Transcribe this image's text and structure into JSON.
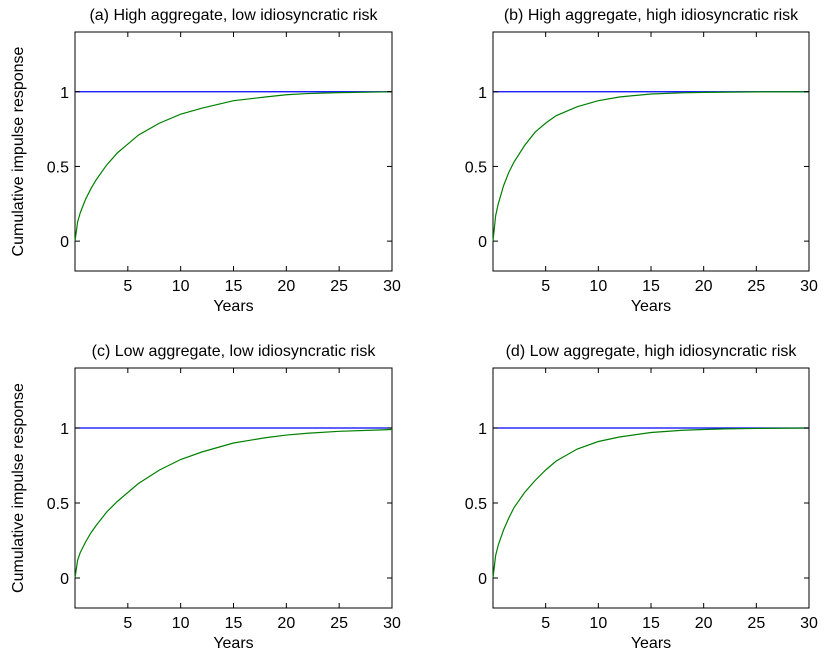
{
  "chart_data": [
    {
      "type": "line",
      "title": "(a) High aggregate, low idiosyncratic risk",
      "xlabel": "Years",
      "ylabel": "Cumulative impulse response",
      "xlim": [
        0,
        30
      ],
      "ylim": [
        -0.2,
        1.4
      ],
      "xticks": [
        5,
        10,
        15,
        20,
        25,
        30
      ],
      "yticks": [
        0,
        0.5,
        1
      ],
      "ytick_labels": [
        "0",
        "0.5",
        "1"
      ],
      "grid": false,
      "series": [
        {
          "color": "#0000ff",
          "x": [
            0,
            30
          ],
          "y": [
            1,
            1
          ]
        },
        {
          "color": "#008000",
          "x": [
            0,
            0.25,
            0.5,
            1,
            1.5,
            2,
            3,
            4,
            5,
            6,
            8,
            10,
            12,
            15,
            18,
            20,
            22,
            25,
            30
          ],
          "y": [
            0,
            0.13,
            0.19,
            0.28,
            0.35,
            0.41,
            0.51,
            0.59,
            0.65,
            0.71,
            0.79,
            0.85,
            0.89,
            0.94,
            0.965,
            0.98,
            0.988,
            0.994,
            1.0
          ]
        }
      ]
    },
    {
      "type": "line",
      "title": "(b) High aggregate, high idiosyncratic risk",
      "xlabel": "Years",
      "ylabel": "",
      "xlim": [
        0,
        30
      ],
      "ylim": [
        -0.2,
        1.4
      ],
      "xticks": [
        5,
        10,
        15,
        20,
        25,
        30
      ],
      "yticks": [
        0,
        0.5,
        1
      ],
      "ytick_labels": [
        "0",
        "0.5",
        "1"
      ],
      "grid": false,
      "series": [
        {
          "color": "#0000ff",
          "x": [
            0,
            30
          ],
          "y": [
            1,
            1
          ]
        },
        {
          "color": "#008000",
          "x": [
            0,
            0.25,
            0.5,
            1,
            1.5,
            2,
            3,
            4,
            5,
            6,
            8,
            10,
            12,
            15,
            18,
            20,
            25,
            30
          ],
          "y": [
            0,
            0.17,
            0.25,
            0.37,
            0.46,
            0.53,
            0.64,
            0.73,
            0.79,
            0.84,
            0.9,
            0.94,
            0.965,
            0.985,
            0.993,
            0.996,
            0.999,
            1.0
          ]
        }
      ]
    },
    {
      "type": "line",
      "title": "(c) Low aggregate, low idiosyncratic risk",
      "xlabel": "Years",
      "ylabel": "Cumulative impulse response",
      "xlim": [
        0,
        30
      ],
      "ylim": [
        -0.2,
        1.4
      ],
      "xticks": [
        5,
        10,
        15,
        20,
        25,
        30
      ],
      "yticks": [
        0,
        0.5,
        1
      ],
      "ytick_labels": [
        "0",
        "0.5",
        "1"
      ],
      "grid": false,
      "series": [
        {
          "color": "#0000ff",
          "x": [
            0,
            30
          ],
          "y": [
            1,
            1
          ]
        },
        {
          "color": "#008000",
          "x": [
            0,
            0.25,
            0.5,
            1,
            1.5,
            2,
            3,
            4,
            5,
            6,
            8,
            10,
            12,
            15,
            18,
            20,
            22,
            25,
            30
          ],
          "y": [
            0,
            0.12,
            0.17,
            0.24,
            0.3,
            0.35,
            0.44,
            0.51,
            0.57,
            0.63,
            0.72,
            0.79,
            0.84,
            0.9,
            0.935,
            0.953,
            0.965,
            0.978,
            0.99
          ]
        }
      ]
    },
    {
      "type": "line",
      "title": "(d) Low aggregate, high idiosyncratic risk",
      "xlabel": "Years",
      "ylabel": "",
      "xlim": [
        0,
        30
      ],
      "ylim": [
        -0.2,
        1.4
      ],
      "xticks": [
        5,
        10,
        15,
        20,
        25,
        30
      ],
      "yticks": [
        0,
        0.5,
        1
      ],
      "ytick_labels": [
        "0",
        "0.5",
        "1"
      ],
      "grid": false,
      "series": [
        {
          "color": "#0000ff",
          "x": [
            0,
            30
          ],
          "y": [
            1,
            1
          ]
        },
        {
          "color": "#008000",
          "x": [
            0,
            0.25,
            0.5,
            1,
            1.5,
            2,
            3,
            4,
            5,
            6,
            8,
            10,
            12,
            15,
            18,
            20,
            22,
            25,
            30
          ],
          "y": [
            0,
            0.15,
            0.22,
            0.32,
            0.4,
            0.47,
            0.57,
            0.65,
            0.72,
            0.78,
            0.86,
            0.91,
            0.94,
            0.97,
            0.985,
            0.99,
            0.994,
            0.997,
            1.0
          ]
        }
      ]
    }
  ]
}
